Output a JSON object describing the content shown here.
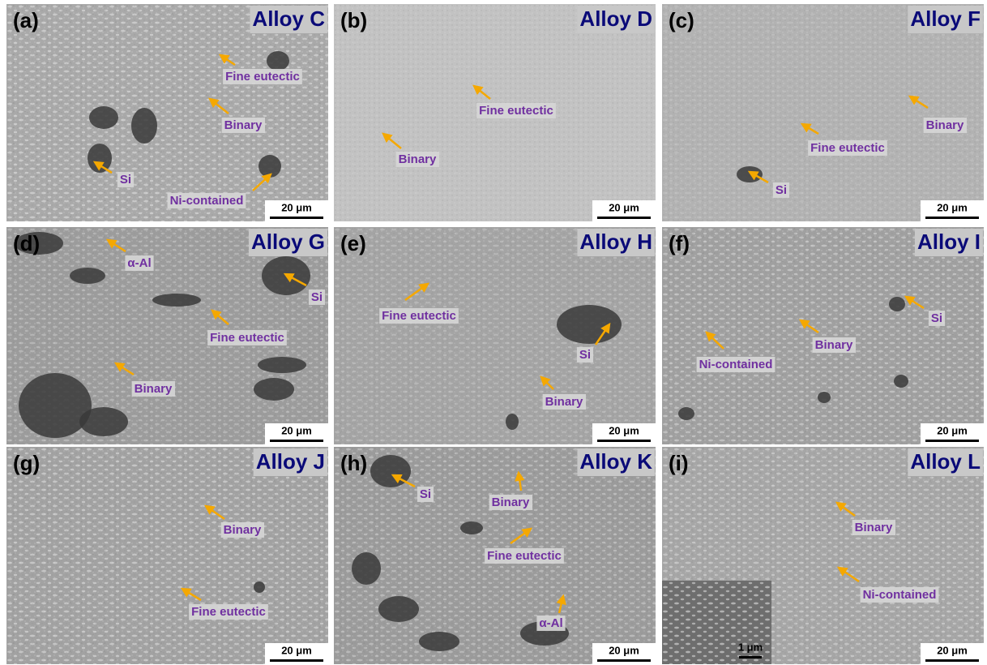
{
  "panels": [
    {
      "label": "(a)",
      "title": "Alloy C",
      "scale_bar": "20 μm",
      "annotations": [
        "Fine eutectic",
        "Binary",
        "Si",
        "Ni-contained"
      ]
    },
    {
      "label": "(b)",
      "title": "Alloy D",
      "scale_bar": "20 μm",
      "annotations": [
        "Fine eutectic",
        "Binary"
      ]
    },
    {
      "label": "(c)",
      "title": "Alloy F",
      "scale_bar": "20 μm",
      "annotations": [
        "Binary",
        "Fine eutectic",
        "Si"
      ]
    },
    {
      "label": "(d)",
      "title": "Alloy G",
      "scale_bar": "20 μm",
      "annotations": [
        "α-Al",
        "Si",
        "Fine eutectic",
        "Binary"
      ]
    },
    {
      "label": "(e)",
      "title": "Alloy H",
      "scale_bar": "20 μm",
      "annotations": [
        "Fine eutectic",
        "Si",
        "Binary"
      ]
    },
    {
      "label": "(f)",
      "title": "Alloy I",
      "scale_bar": "20 μm",
      "annotations": [
        "Si",
        "Binary",
        "Ni-contained"
      ]
    },
    {
      "label": "(g)",
      "title": "Alloy J",
      "scale_bar": "20 μm",
      "annotations": [
        "Binary",
        "Fine eutectic"
      ]
    },
    {
      "label": "(h)",
      "title": "Alloy K",
      "scale_bar": "20 μm",
      "annotations": [
        "Si",
        "Binary",
        "Fine eutectic",
        "α-Al"
      ]
    },
    {
      "label": "(i)",
      "title": "Alloy L",
      "scale_bar": "20 μm",
      "annotations": [
        "Binary",
        "Ni-contained"
      ],
      "inset_scale_bar": "1 μm"
    }
  ]
}
